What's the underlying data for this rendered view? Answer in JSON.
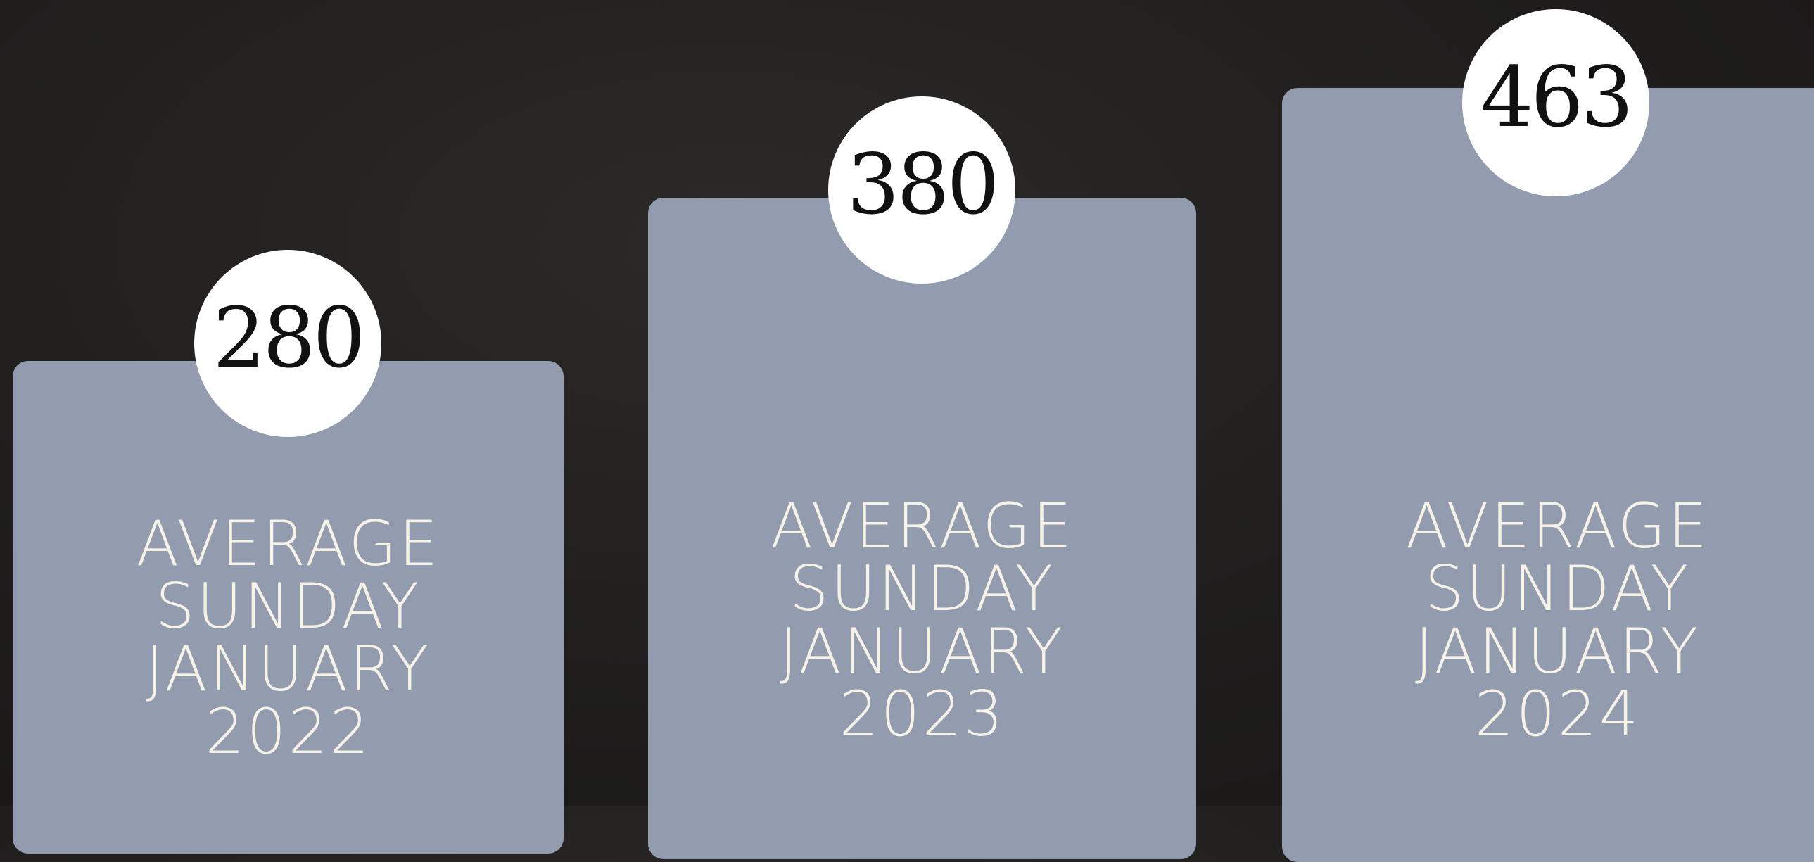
{
  "cards": [
    {
      "value": 280,
      "label_lines": [
        "AVERAGE",
        "SUNDAY",
        "JANUARY",
        "2022"
      ]
    },
    {
      "value": 380,
      "label_lines": [
        "AVERAGE",
        "SUNDAY",
        "JANUARY",
        "2023"
      ]
    },
    {
      "value": 463,
      "label_lines": [
        "AVERAGE",
        "SUNDAY",
        "JANUARY",
        "2024"
      ]
    }
  ]
}
